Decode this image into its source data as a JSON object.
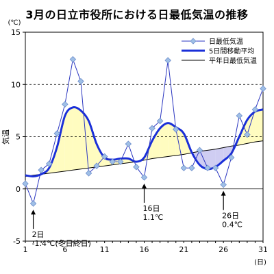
{
  "chart_data": {
    "type": "line",
    "title": "3月の日立市役所における日最低気温の推移",
    "ylabel": "気温",
    "yunit": "(℃)",
    "xunit": "(日)",
    "ylim": [
      -5,
      15
    ],
    "xlim": [
      1,
      31
    ],
    "yticks": [
      "15",
      "10",
      "5",
      "0",
      "-5"
    ],
    "xticks": [
      "1",
      "6",
      "11",
      "16",
      "21",
      "26",
      "31"
    ],
    "grid": "dashed horizontal at 5 and 10",
    "legend_position": "top-right",
    "colors": {
      "daily": "#2a35c0",
      "marker_fill": "#9fbfe6",
      "moving_avg": "#1a2fd8",
      "normal": "#000000",
      "fill_above": "#fffcc0",
      "fill_below": "#cfcdf2"
    },
    "x": [
      1,
      2,
      3,
      4,
      5,
      6,
      7,
      8,
      9,
      10,
      11,
      12,
      13,
      14,
      15,
      16,
      17,
      18,
      19,
      20,
      21,
      22,
      23,
      24,
      25,
      26,
      27,
      28,
      29,
      30,
      31
    ],
    "series": [
      {
        "name": "日最低気温",
        "values": [
          0.5,
          -1.4,
          1.8,
          2.4,
          5.3,
          8.1,
          12.4,
          10.3,
          1.5,
          2.2,
          3.1,
          2.6,
          2.6,
          4.3,
          2.1,
          1.1,
          5.8,
          6.5,
          12.3,
          5.7,
          2.0,
          2.0,
          3.7,
          2.0,
          2.0,
          0.4,
          3.0,
          7.0,
          5.2,
          7.6,
          9.6
        ]
      },
      {
        "name": "5日間移動平均",
        "values": [
          1.3,
          1.2,
          1.4,
          2.0,
          4.0,
          7.0,
          7.8,
          7.5,
          6.5,
          4.3,
          3.0,
          2.8,
          2.9,
          2.9,
          2.6,
          3.0,
          4.6,
          5.8,
          6.3,
          5.9,
          5.3,
          3.5,
          2.3,
          1.9,
          2.1,
          2.7,
          3.4,
          5.0,
          6.6,
          7.4,
          7.6
        ]
      },
      {
        "name": "平年日最低気温",
        "values": [
          1.2,
          1.3,
          1.4,
          1.5,
          1.6,
          1.7,
          1.8,
          1.9,
          2.0,
          2.1,
          2.2,
          2.3,
          2.4,
          2.5,
          2.6,
          2.75,
          2.9,
          3.0,
          3.1,
          3.2,
          3.3,
          3.45,
          3.6,
          3.7,
          3.8,
          3.95,
          4.1,
          4.2,
          4.35,
          4.5,
          4.6
        ]
      }
    ],
    "annotations": [
      {
        "day": 2,
        "lines": [
          "2日",
          "-1.4℃(冬日終日)"
        ]
      },
      {
        "day": 16,
        "lines": [
          "16日",
          "1.1℃"
        ]
      },
      {
        "day": 26,
        "lines": [
          "26日",
          "0.4℃"
        ]
      }
    ]
  }
}
